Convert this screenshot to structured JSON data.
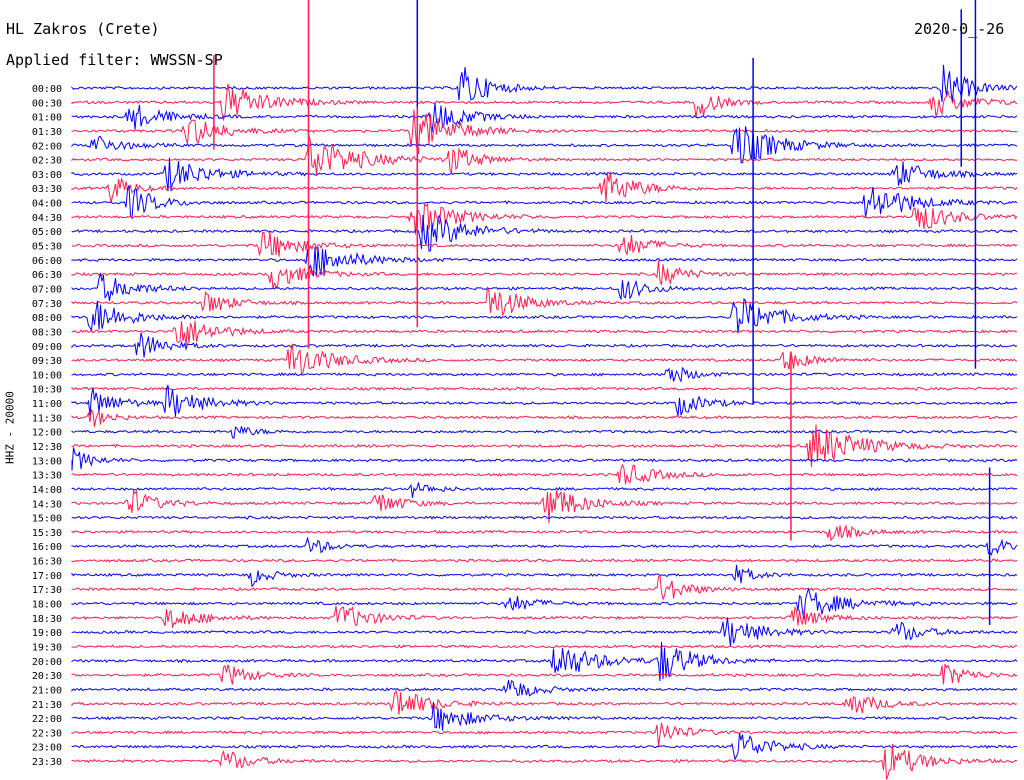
{
  "header": {
    "station": "HL Zakros (Crete)",
    "filter": "Applied filter: WWSSN-SP",
    "date": "2020-0_-26"
  },
  "channel_label": "HHZ - 20000",
  "colors": {
    "even_rows": "#0000ff",
    "odd_rows": "#ff1a4a",
    "text": "#000000",
    "background": "#ffffff"
  },
  "chart_data": {
    "type": "line",
    "subtype": "helicorder",
    "row_labels": [
      "00:00",
      "00:30",
      "01:00",
      "01:30",
      "02:00",
      "02:30",
      "03:00",
      "03:30",
      "04:00",
      "04:30",
      "05:00",
      "05:30",
      "06:00",
      "06:30",
      "07:00",
      "07:30",
      "08:00",
      "08:30",
      "09:00",
      "09:30",
      "10:00",
      "10:30",
      "11:00",
      "11:30",
      "12:00",
      "12:30",
      "13:00",
      "13:30",
      "14:00",
      "14:30",
      "15:00",
      "15:30",
      "16:00",
      "16:30",
      "17:00",
      "17:30",
      "18:00",
      "18:30",
      "19:00",
      "19:30",
      "20:00",
      "20:30",
      "21:00",
      "21:30",
      "22:00",
      "22:30",
      "23:00",
      "23:30"
    ],
    "row_minutes": 30,
    "events": [
      {
        "row": 0,
        "t": 0.41,
        "amp": 1.0,
        "dur": 0.04
      },
      {
        "row": 0,
        "t": 0.92,
        "amp": 0.9,
        "dur": 0.04
      },
      {
        "row": 1,
        "t": 0.16,
        "amp": 0.8,
        "dur": 0.06
      },
      {
        "row": 1,
        "t": 0.66,
        "amp": 0.7,
        "dur": 0.03
      },
      {
        "row": 1,
        "t": 0.91,
        "amp": 0.6,
        "dur": 0.05
      },
      {
        "row": 2,
        "t": 0.06,
        "amp": 0.6,
        "dur": 0.05
      },
      {
        "row": 2,
        "t": 0.38,
        "amp": 0.7,
        "dur": 0.05
      },
      {
        "row": 3,
        "t": 0.12,
        "amp": 0.7,
        "dur": 0.05
      },
      {
        "row": 3,
        "t": 0.36,
        "amp": 1.0,
        "dur": 0.06
      },
      {
        "row": 4,
        "t": 0.02,
        "amp": 0.5,
        "dur": 0.04
      },
      {
        "row": 4,
        "t": 0.7,
        "amp": 1.0,
        "dur": 0.06
      },
      {
        "row": 5,
        "t": 0.25,
        "amp": 1.0,
        "dur": 0.07
      },
      {
        "row": 5,
        "t": 0.4,
        "amp": 0.6,
        "dur": 0.04
      },
      {
        "row": 6,
        "t": 0.1,
        "amp": 0.7,
        "dur": 0.06
      },
      {
        "row": 6,
        "t": 0.87,
        "amp": 0.6,
        "dur": 0.05
      },
      {
        "row": 7,
        "t": 0.04,
        "amp": 0.6,
        "dur": 0.03
      },
      {
        "row": 7,
        "t": 0.56,
        "amp": 0.8,
        "dur": 0.05
      },
      {
        "row": 8,
        "t": 0.06,
        "amp": 0.7,
        "dur": 0.04
      },
      {
        "row": 8,
        "t": 0.84,
        "amp": 0.9,
        "dur": 0.06
      },
      {
        "row": 9,
        "t": 0.36,
        "amp": 0.8,
        "dur": 0.06
      },
      {
        "row": 9,
        "t": 0.89,
        "amp": 0.7,
        "dur": 0.05
      },
      {
        "row": 10,
        "t": 0.37,
        "amp": 0.9,
        "dur": 0.06
      },
      {
        "row": 11,
        "t": 0.2,
        "amp": 0.7,
        "dur": 0.05
      },
      {
        "row": 11,
        "t": 0.58,
        "amp": 0.6,
        "dur": 0.04
      },
      {
        "row": 12,
        "t": 0.25,
        "amp": 0.8,
        "dur": 0.06
      },
      {
        "row": 13,
        "t": 0.21,
        "amp": 0.6,
        "dur": 0.05
      },
      {
        "row": 13,
        "t": 0.62,
        "amp": 0.5,
        "dur": 0.04
      },
      {
        "row": 14,
        "t": 0.03,
        "amp": 0.6,
        "dur": 0.05
      },
      {
        "row": 14,
        "t": 0.58,
        "amp": 0.5,
        "dur": 0.04
      },
      {
        "row": 15,
        "t": 0.14,
        "amp": 0.5,
        "dur": 0.04
      },
      {
        "row": 15,
        "t": 0.44,
        "amp": 0.8,
        "dur": 0.05
      },
      {
        "row": 16,
        "t": 0.02,
        "amp": 0.8,
        "dur": 0.05
      },
      {
        "row": 16,
        "t": 0.7,
        "amp": 0.9,
        "dur": 0.06
      },
      {
        "row": 17,
        "t": 0.11,
        "amp": 0.8,
        "dur": 0.05
      },
      {
        "row": 18,
        "t": 0.07,
        "amp": 0.6,
        "dur": 0.04
      },
      {
        "row": 19,
        "t": 0.23,
        "amp": 0.8,
        "dur": 0.06
      },
      {
        "row": 19,
        "t": 0.75,
        "amp": 0.5,
        "dur": 0.04
      },
      {
        "row": 20,
        "t": 0.63,
        "amp": 0.5,
        "dur": 0.03
      },
      {
        "row": 22,
        "t": 0.02,
        "amp": 0.6,
        "dur": 0.04
      },
      {
        "row": 22,
        "t": 0.1,
        "amp": 0.7,
        "dur": 0.05
      },
      {
        "row": 22,
        "t": 0.64,
        "amp": 0.5,
        "dur": 0.04
      },
      {
        "row": 23,
        "t": 0.02,
        "amp": 0.4,
        "dur": 0.03
      },
      {
        "row": 24,
        "t": 0.17,
        "amp": 0.3,
        "dur": 0.03
      },
      {
        "row": 25,
        "t": 0.78,
        "amp": 1.0,
        "dur": 0.07
      },
      {
        "row": 26,
        "t": 0.0,
        "amp": 0.5,
        "dur": 0.03
      },
      {
        "row": 27,
        "t": 0.58,
        "amp": 0.5,
        "dur": 0.05
      },
      {
        "row": 28,
        "t": 0.36,
        "amp": 0.3,
        "dur": 0.03
      },
      {
        "row": 29,
        "t": 0.06,
        "amp": 0.6,
        "dur": 0.04
      },
      {
        "row": 29,
        "t": 0.32,
        "amp": 0.5,
        "dur": 0.04
      },
      {
        "row": 29,
        "t": 0.5,
        "amp": 0.9,
        "dur": 0.05
      },
      {
        "row": 31,
        "t": 0.8,
        "amp": 0.4,
        "dur": 0.04
      },
      {
        "row": 32,
        "t": 0.25,
        "amp": 0.4,
        "dur": 0.03
      },
      {
        "row": 32,
        "t": 0.97,
        "amp": 0.4,
        "dur": 0.03
      },
      {
        "row": 34,
        "t": 0.19,
        "amp": 0.4,
        "dur": 0.03
      },
      {
        "row": 34,
        "t": 0.7,
        "amp": 0.4,
        "dur": 0.03
      },
      {
        "row": 35,
        "t": 0.62,
        "amp": 0.6,
        "dur": 0.04
      },
      {
        "row": 36,
        "t": 0.46,
        "amp": 0.4,
        "dur": 0.04
      },
      {
        "row": 36,
        "t": 0.77,
        "amp": 0.7,
        "dur": 0.06
      },
      {
        "row": 37,
        "t": 0.1,
        "amp": 0.5,
        "dur": 0.05
      },
      {
        "row": 37,
        "t": 0.28,
        "amp": 0.6,
        "dur": 0.05
      },
      {
        "row": 37,
        "t": 0.76,
        "amp": 0.5,
        "dur": 0.04
      },
      {
        "row": 38,
        "t": 0.69,
        "amp": 0.7,
        "dur": 0.05
      },
      {
        "row": 38,
        "t": 0.87,
        "amp": 0.5,
        "dur": 0.04
      },
      {
        "row": 40,
        "t": 0.51,
        "amp": 0.8,
        "dur": 0.06
      },
      {
        "row": 40,
        "t": 0.62,
        "amp": 0.9,
        "dur": 0.05
      },
      {
        "row": 41,
        "t": 0.16,
        "amp": 0.5,
        "dur": 0.04
      },
      {
        "row": 41,
        "t": 0.92,
        "amp": 0.5,
        "dur": 0.04
      },
      {
        "row": 42,
        "t": 0.46,
        "amp": 0.5,
        "dur": 0.04
      },
      {
        "row": 43,
        "t": 0.34,
        "amp": 0.7,
        "dur": 0.05
      },
      {
        "row": 43,
        "t": 0.82,
        "amp": 0.6,
        "dur": 0.04
      },
      {
        "row": 44,
        "t": 0.38,
        "amp": 0.6,
        "dur": 0.06
      },
      {
        "row": 45,
        "t": 0.62,
        "amp": 0.5,
        "dur": 0.04
      },
      {
        "row": 46,
        "t": 0.7,
        "amp": 0.7,
        "dur": 0.05
      },
      {
        "row": 47,
        "t": 0.16,
        "amp": 0.5,
        "dur": 0.04
      },
      {
        "row": 47,
        "t": 0.86,
        "amp": 0.8,
        "dur": 0.05
      }
    ],
    "spikes": [
      {
        "row": 0,
        "t": 0.365,
        "amp": 4.0
      },
      {
        "row": 1,
        "t": 0.15,
        "amp": 1.5
      },
      {
        "row": 5,
        "t": 0.25,
        "amp": 6.0
      },
      {
        "row": 9,
        "t": 0.365,
        "amp": 3.5
      },
      {
        "row": 10,
        "t": 0.72,
        "amp": 5.5
      },
      {
        "row": 2,
        "t": 0.955,
        "amp": 8.0
      },
      {
        "row": 0,
        "t": 0.94,
        "amp": 2.5
      },
      {
        "row": 25,
        "t": 0.76,
        "amp": 3.0
      },
      {
        "row": 32,
        "t": 0.97,
        "amp": 2.5
      }
    ]
  }
}
